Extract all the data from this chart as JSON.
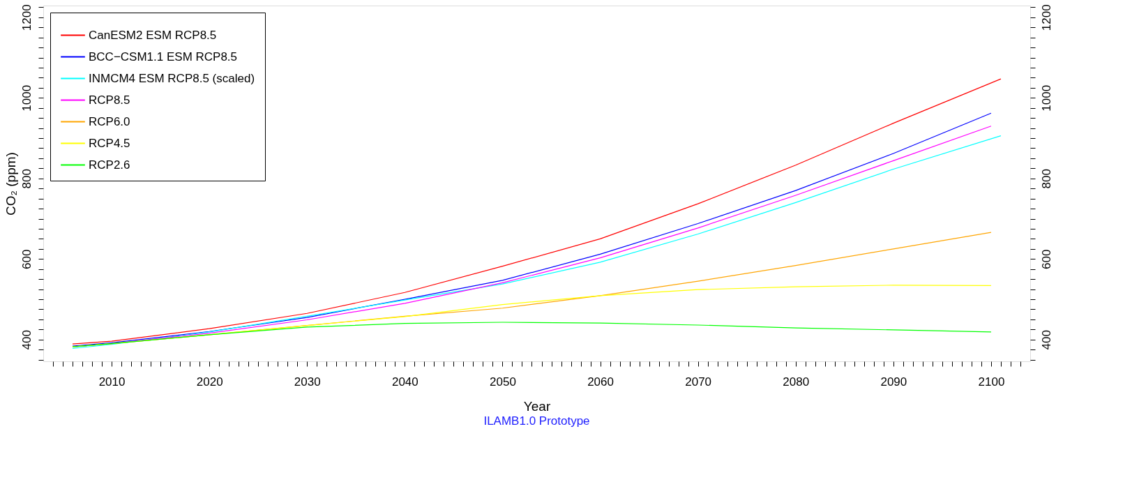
{
  "chart_data": {
    "type": "line",
    "xlabel": "Year",
    "ylabel": "CO₂ (ppm)",
    "annotations": [
      "ILAMB1.0 Prototype"
    ],
    "xlim": [
      2003,
      2104
    ],
    "ylim": [
      346,
      1229
    ],
    "y2lim": [
      346,
      1229
    ],
    "grid": false,
    "legend": "top left",
    "marker": "none",
    "line_style": "solid",
    "xticks": [
      {
        "value": 2004,
        "label": null
      },
      {
        "value": 2005,
        "label": null
      },
      {
        "value": 2006,
        "label": null
      },
      {
        "value": 2007,
        "label": null
      },
      {
        "value": 2008,
        "label": null
      },
      {
        "value": 2009,
        "label": null
      },
      2010,
      {
        "value": 2011,
        "label": null
      },
      {
        "value": 2012,
        "label": null
      },
      {
        "value": 2013,
        "label": null
      },
      {
        "value": 2014,
        "label": null
      },
      {
        "value": 2015,
        "label": null
      },
      {
        "value": 2016,
        "label": null
      },
      {
        "value": 2017,
        "label": null
      },
      {
        "value": 2018,
        "label": null
      },
      {
        "value": 2019,
        "label": null
      },
      2020,
      {
        "value": 2021,
        "label": null
      },
      {
        "value": 2022,
        "label": null
      },
      {
        "value": 2023,
        "label": null
      },
      {
        "value": 2024,
        "label": null
      },
      {
        "value": 2025,
        "label": null
      },
      {
        "value": 2026,
        "label": null
      },
      {
        "value": 2027,
        "label": null
      },
      {
        "value": 2028,
        "label": null
      },
      {
        "value": 2029,
        "label": null
      },
      2030,
      {
        "value": 2031,
        "label": null
      },
      {
        "value": 2032,
        "label": null
      },
      {
        "value": 2033,
        "label": null
      },
      {
        "value": 2034,
        "label": null
      },
      {
        "value": 2035,
        "label": null
      },
      {
        "value": 2036,
        "label": null
      },
      {
        "value": 2037,
        "label": null
      },
      {
        "value": 2038,
        "label": null
      },
      {
        "value": 2039,
        "label": null
      },
      2040,
      {
        "value": 2041,
        "label": null
      },
      {
        "value": 2042,
        "label": null
      },
      {
        "value": 2043,
        "label": null
      },
      {
        "value": 2044,
        "label": null
      },
      {
        "value": 2045,
        "label": null
      },
      {
        "value": 2046,
        "label": null
      },
      {
        "value": 2047,
        "label": null
      },
      {
        "value": 2048,
        "label": null
      },
      {
        "value": 2049,
        "label": null
      },
      2050,
      {
        "value": 2051,
        "label": null
      },
      {
        "value": 2052,
        "label": null
      },
      {
        "value": 2053,
        "label": null
      },
      {
        "value": 2054,
        "label": null
      },
      {
        "value": 2055,
        "label": null
      },
      {
        "value": 2056,
        "label": null
      },
      {
        "value": 2057,
        "label": null
      },
      {
        "value": 2058,
        "label": null
      },
      {
        "value": 2059,
        "label": null
      },
      2060,
      {
        "value": 2061,
        "label": null
      },
      {
        "value": 2062,
        "label": null
      },
      {
        "value": 2063,
        "label": null
      },
      {
        "value": 2064,
        "label": null
      },
      {
        "value": 2065,
        "label": null
      },
      {
        "value": 2066,
        "label": null
      },
      {
        "value": 2067,
        "label": null
      },
      {
        "value": 2068,
        "label": null
      },
      {
        "value": 2069,
        "label": null
      },
      2070,
      {
        "value": 2071,
        "label": null
      },
      {
        "value": 2072,
        "label": null
      },
      {
        "value": 2073,
        "label": null
      },
      {
        "value": 2074,
        "label": null
      },
      {
        "value": 2075,
        "label": null
      },
      {
        "value": 2076,
        "label": null
      },
      {
        "value": 2077,
        "label": null
      },
      {
        "value": 2078,
        "label": null
      },
      {
        "value": 2079,
        "label": null
      },
      2080,
      {
        "value": 2081,
        "label": null
      },
      {
        "value": 2082,
        "label": null
      },
      {
        "value": 2083,
        "label": null
      },
      {
        "value": 2084,
        "label": null
      },
      {
        "value": 2085,
        "label": null
      },
      {
        "value": 2086,
        "label": null
      },
      {
        "value": 2087,
        "label": null
      },
      {
        "value": 2088,
        "label": null
      },
      {
        "value": 2089,
        "label": null
      },
      2090,
      {
        "value": 2091,
        "label": null
      },
      {
        "value": 2092,
        "label": null
      },
      {
        "value": 2093,
        "label": null
      },
      {
        "value": 2094,
        "label": null
      },
      {
        "value": 2095,
        "label": null
      },
      {
        "value": 2096,
        "label": null
      },
      {
        "value": 2097,
        "label": null
      },
      {
        "value": 2098,
        "label": null
      },
      {
        "value": 2099,
        "label": null
      },
      2100,
      {
        "value": 2101,
        "label": null
      },
      {
        "value": 2102,
        "label": null
      },
      {
        "value": 2103,
        "label": null
      }
    ],
    "yticks": [
      {
        "value": 350,
        "label": null
      },
      {
        "value": 375,
        "label": null
      },
      400,
      {
        "value": 425,
        "label": null
      },
      {
        "value": 450,
        "label": null
      },
      {
        "value": 475,
        "label": null
      },
      {
        "value": 500,
        "label": null
      },
      {
        "value": 525,
        "label": null
      },
      {
        "value": 550,
        "label": null
      },
      {
        "value": 575,
        "label": null
      },
      600,
      {
        "value": 625,
        "label": null
      },
      {
        "value": 650,
        "label": null
      },
      {
        "value": 675,
        "label": null
      },
      {
        "value": 700,
        "label": null
      },
      {
        "value": 725,
        "label": null
      },
      {
        "value": 750,
        "label": null
      },
      {
        "value": 775,
        "label": null
      },
      800,
      {
        "value": 825,
        "label": null
      },
      {
        "value": 850,
        "label": null
      },
      {
        "value": 875,
        "label": null
      },
      {
        "value": 900,
        "label": null
      },
      {
        "value": 925,
        "label": null
      },
      {
        "value": 950,
        "label": null
      },
      {
        "value": 975,
        "label": null
      },
      1000,
      {
        "value": 1025,
        "label": null
      },
      {
        "value": 1050,
        "label": null
      },
      {
        "value": 1075,
        "label": null
      },
      {
        "value": 1100,
        "label": null
      },
      {
        "value": 1125,
        "label": null
      },
      {
        "value": 1150,
        "label": null
      },
      {
        "value": 1175,
        "label": null
      },
      1200,
      {
        "value": 1225,
        "label": null
      }
    ],
    "y2ticks": [
      {
        "value": 350,
        "label": null
      },
      {
        "value": 375,
        "label": null
      },
      400,
      {
        "value": 425,
        "label": null
      },
      {
        "value": 450,
        "label": null
      },
      {
        "value": 475,
        "label": null
      },
      {
        "value": 500,
        "label": null
      },
      {
        "value": 525,
        "label": null
      },
      {
        "value": 550,
        "label": null
      },
      {
        "value": 575,
        "label": null
      },
      600,
      {
        "value": 625,
        "label": null
      },
      {
        "value": 650,
        "label": null
      },
      {
        "value": 675,
        "label": null
      },
      {
        "value": 700,
        "label": null
      },
      {
        "value": 725,
        "label": null
      },
      {
        "value": 750,
        "label": null
      },
      {
        "value": 775,
        "label": null
      },
      800,
      {
        "value": 825,
        "label": null
      },
      {
        "value": 850,
        "label": null
      },
      {
        "value": 875,
        "label": null
      },
      {
        "value": 900,
        "label": null
      },
      {
        "value": 925,
        "label": null
      },
      {
        "value": 950,
        "label": null
      },
      {
        "value": 975,
        "label": null
      },
      1000,
      {
        "value": 1025,
        "label": null
      },
      {
        "value": 1050,
        "label": null
      },
      {
        "value": 1075,
        "label": null
      },
      {
        "value": 1100,
        "label": null
      },
      {
        "value": 1125,
        "label": null
      },
      {
        "value": 1150,
        "label": null
      },
      {
        "value": 1175,
        "label": null
      },
      1200,
      {
        "value": 1225,
        "label": null
      }
    ],
    "series": [
      {
        "name": "CanESM2 ESM RCP8.5",
        "color": "#ff0000",
        "x": [
          2006,
          2010,
          2020,
          2030,
          2040,
          2050,
          2060,
          2070,
          2080,
          2090,
          2101
        ],
        "values": [
          389,
          396,
          427,
          465,
          517,
          582,
          650,
          737,
          833,
          937,
          1047
        ]
      },
      {
        "name": "BCC−CSM1.1 ESM RCP8.5",
        "color": "#0000ff",
        "x": [
          2006,
          2010,
          2020,
          2030,
          2040,
          2050,
          2060,
          2070,
          2080,
          2090,
          2100
        ],
        "values": [
          384,
          392,
          420,
          455,
          500,
          547,
          612,
          688,
          770,
          862,
          962
        ]
      },
      {
        "name": "INMCM4 ESM RCP8.5 (scaled)",
        "color": "#00ffff",
        "x": [
          2006,
          2010,
          2020,
          2030,
          2040,
          2050,
          2060,
          2070,
          2080,
          2090,
          2101
        ],
        "values": [
          378,
          388,
          419,
          458,
          498,
          538,
          592,
          662,
          740,
          823,
          906
        ]
      },
      {
        "name": "RCP8.5",
        "color": "#ff00ff",
        "x": [
          2006,
          2010,
          2020,
          2030,
          2040,
          2050,
          2060,
          2070,
          2080,
          2090,
          2100
        ],
        "values": [
          382,
          390,
          416,
          449,
          490,
          541,
          603,
          677,
          758,
          844,
          930
        ]
      },
      {
        "name": "RCP6.0",
        "color": "#ffa500",
        "x": [
          2006,
          2010,
          2020,
          2030,
          2040,
          2050,
          2060,
          2070,
          2080,
          2090,
          2100
        ],
        "values": [
          382,
          390,
          412,
          435,
          458,
          478,
          509,
          545,
          584,
          625,
          666
        ]
      },
      {
        "name": "RCP4.5",
        "color": "#ffff00",
        "x": [
          2006,
          2010,
          2020,
          2030,
          2040,
          2050,
          2060,
          2070,
          2080,
          2090,
          2100
        ],
        "values": [
          382,
          390,
          412,
          435,
          457,
          487,
          509,
          524,
          531,
          535,
          534
        ]
      },
      {
        "name": "RCP2.6",
        "color": "#00ff00",
        "x": [
          2006,
          2010,
          2020,
          2030,
          2040,
          2050,
          2060,
          2070,
          2080,
          2090,
          2100
        ],
        "values": [
          382,
          390,
          412,
          431,
          440,
          443,
          441,
          436,
          429,
          424,
          419
        ]
      }
    ]
  }
}
